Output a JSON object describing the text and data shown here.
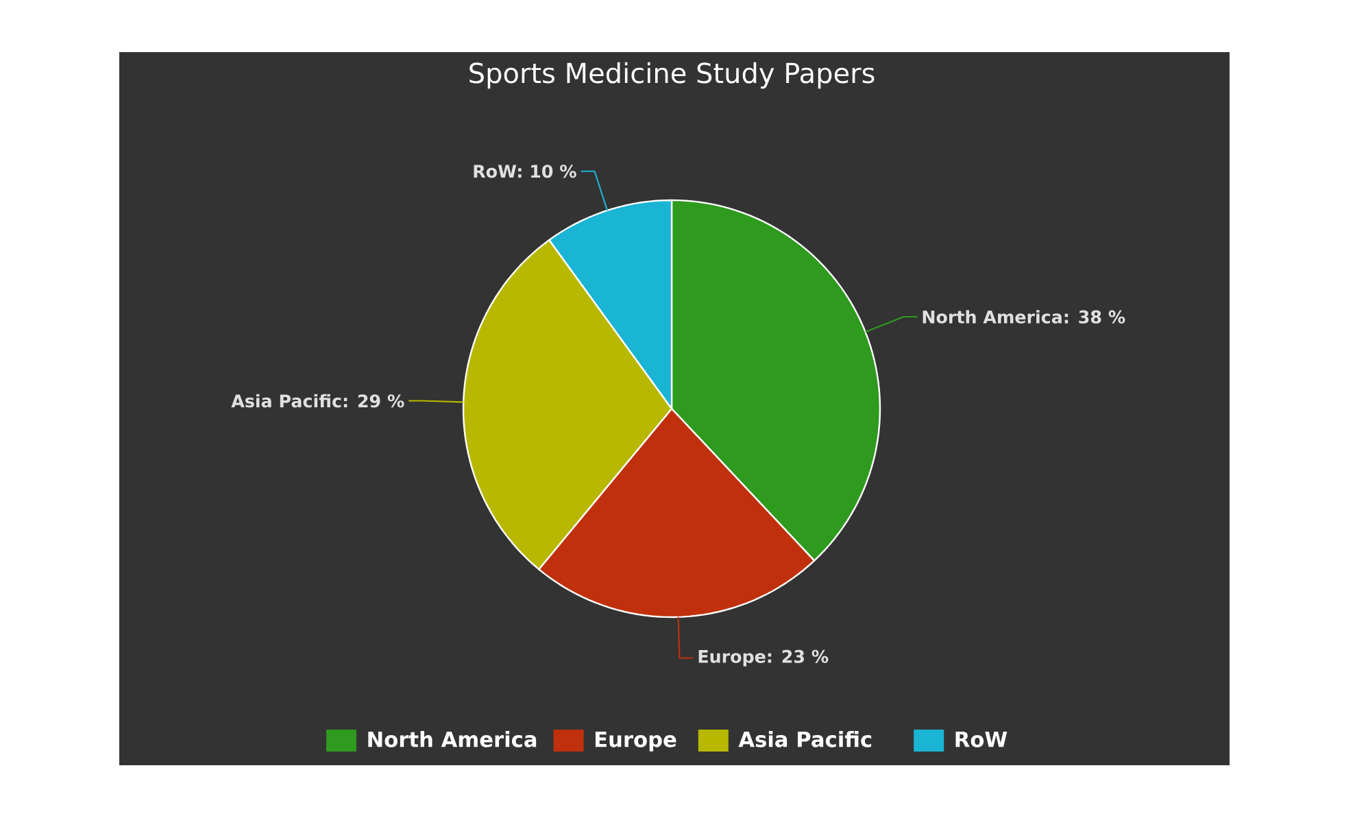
{
  "chart_data": {
    "type": "pie",
    "title": "Sports Medicine Study Papers",
    "categories": [
      "North America",
      "Europe",
      "Asia Pacific",
      "RoW"
    ],
    "values": [
      38,
      23,
      29,
      10
    ],
    "colors": [
      "#2e9a1e",
      "#c0300c",
      "#b8b800",
      "#1ab4d4"
    ],
    "value_labels": [
      "North America: 38 %",
      "Europe: 23 %",
      "Asia Pacific: 29 %",
      "RoW: 10 %"
    ],
    "legend": "bottom"
  }
}
